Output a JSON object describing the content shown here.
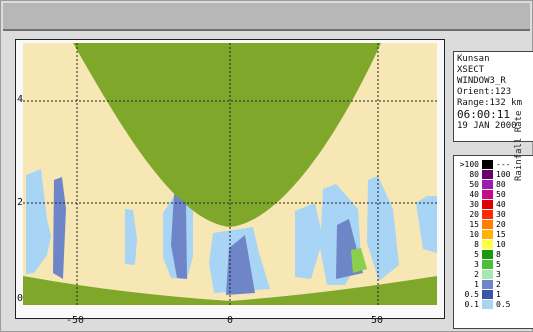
{
  "window": {
    "title": ""
  },
  "info": {
    "site": "Kunsan",
    "product": "XSECT",
    "window": "WINDOW3_R",
    "orient": "Orient:123",
    "range": "Range:132 km",
    "time": "06:00:11",
    "date": "19 JAN 2000"
  },
  "legend": {
    "title": "Rainfall Rate",
    "rows": [
      {
        "left": ">100",
        "right": "---",
        "color": "#000000"
      },
      {
        "left": "80",
        "right": "100",
        "color": "#6a006a"
      },
      {
        "left": "50",
        "right": "80",
        "color": "#9b1bb0"
      },
      {
        "left": "40",
        "right": "50",
        "color": "#c20d86"
      },
      {
        "left": "30",
        "right": "40",
        "color": "#e00000"
      },
      {
        "left": "20",
        "right": "30",
        "color": "#ff2a00"
      },
      {
        "left": "15",
        "right": "20",
        "color": "#ff7d00"
      },
      {
        "left": "10",
        "right": "15",
        "color": "#ffb200"
      },
      {
        "left": "8",
        "right": "10",
        "color": "#ffff44"
      },
      {
        "left": "5",
        "right": "8",
        "color": "#1a9a10"
      },
      {
        "left": "3",
        "right": "5",
        "color": "#49c23a"
      },
      {
        "left": "2",
        "right": "3",
        "color": "#a6e9b0"
      },
      {
        "left": "1",
        "right": "2",
        "color": "#6e86c8"
      },
      {
        "left": "0.5",
        "right": "1",
        "color": "#3c55a6"
      },
      {
        "left": "0.1",
        "right": "0.5",
        "color": "#a8d4f6"
      }
    ]
  },
  "axes": {
    "x_ticks": [
      "-50",
      "0",
      "50"
    ],
    "y_ticks": [
      "0",
      "2",
      "4"
    ]
  },
  "colors": {
    "background_fill": "#f7e7b4",
    "terrain": "#7fa82a",
    "light_rain": "#a8d4f6",
    "moderate_rain": "#6e86c8",
    "heavy_rain": "#3c55a6",
    "green_rain": "#8bd04a"
  }
}
